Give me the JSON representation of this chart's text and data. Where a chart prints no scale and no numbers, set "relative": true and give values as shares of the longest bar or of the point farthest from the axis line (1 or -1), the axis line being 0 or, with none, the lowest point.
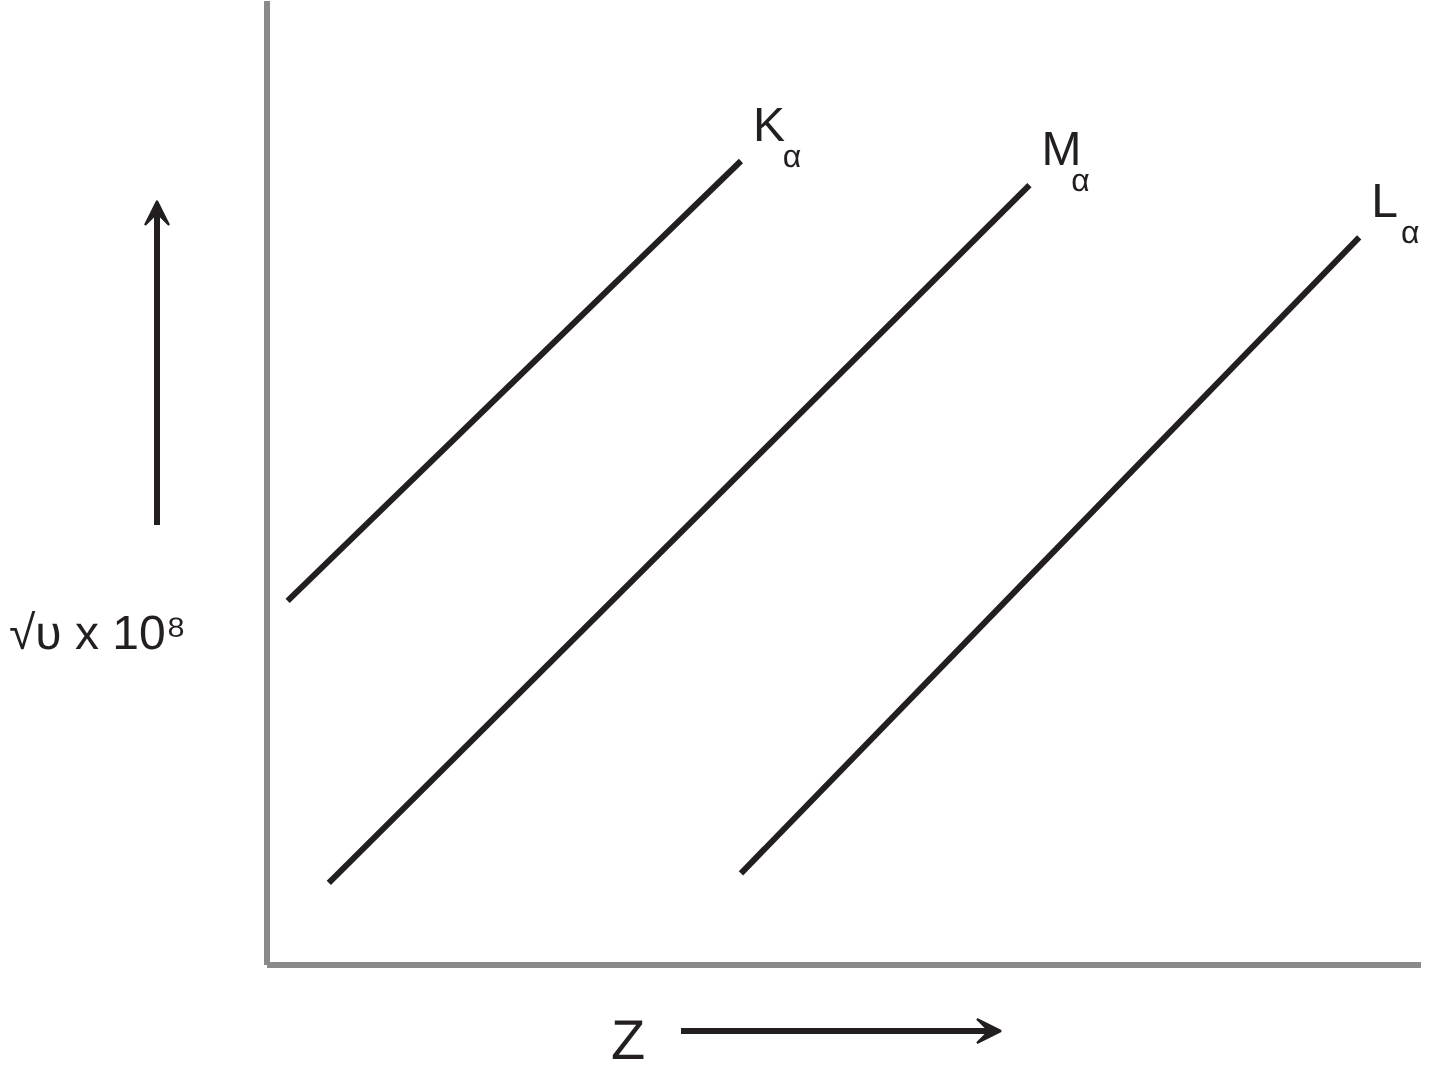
{
  "chart_data": {
    "type": "line",
    "relative": true,
    "xlabel": "Z",
    "ylabel": "√υ x 10⁸",
    "marker": "none",
    "line_style": "solid",
    "categories": [
      null,
      null,
      null,
      null,
      null,
      null,
      null,
      null,
      null,
      null,
      null,
      null,
      null,
      null,
      null,
      null,
      null,
      null,
      null,
      null,
      null,
      null,
      null,
      null,
      null,
      null,
      null,
      null
    ],
    "series": [
      {
        "name": "K$_{α}$",
        "color": "#231f20",
        "values": [
          0.453,
          null,
          null,
          null,
          null,
          null,
          null,
          null,
          null,
          null,
          null,
          1.0,
          null,
          null,
          null,
          null,
          null,
          null,
          null,
          null,
          null,
          null,
          null,
          null,
          null,
          null,
          null,
          null
        ]
      },
      {
        "name": "M$_{α}$",
        "color": "#231f20",
        "values": [
          null,
          0.102,
          null,
          null,
          null,
          null,
          null,
          null,
          null,
          null,
          null,
          null,
          null,
          null,
          null,
          null,
          null,
          null,
          0.97,
          null,
          null,
          null,
          null,
          null,
          null,
          null,
          null,
          null
        ]
      },
      {
        "name": "L$_{α}$",
        "color": "#231f20",
        "values": [
          null,
          null,
          null,
          null,
          null,
          null,
          null,
          null,
          null,
          null,
          null,
          0.114,
          null,
          null,
          null,
          null,
          null,
          null,
          null,
          null,
          null,
          null,
          null,
          null,
          null,
          null,
          0.905,
          null
        ]
      }
    ]
  }
}
